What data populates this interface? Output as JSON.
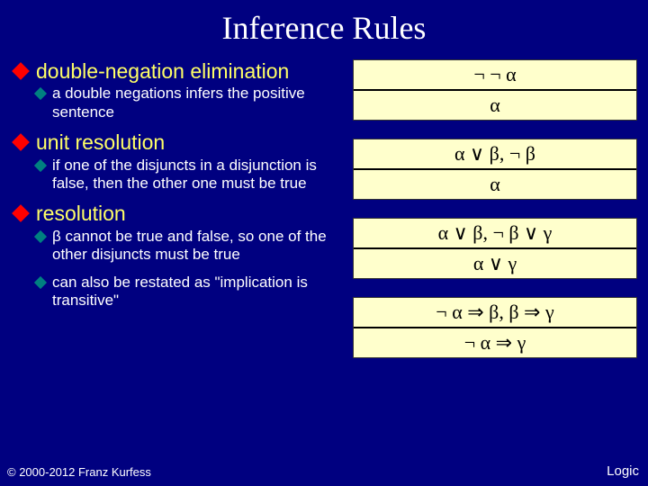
{
  "title": "Inference Rules",
  "bullets": [
    {
      "label": "double-negation elimination",
      "subs": [
        "a double negations infers the positive sentence"
      ]
    },
    {
      "label": "unit resolution",
      "subs": [
        "if one of the disjuncts in a disjunction is false, then the other one must be true"
      ]
    },
    {
      "label": "resolution",
      "subs": [
        "β  cannot be true and false, so one of the other disjuncts must be true",
        "can also be restated as \"implication is transitive\""
      ]
    }
  ],
  "rules": [
    {
      "top": "¬ ¬ α",
      "bot": "α"
    },
    {
      "top": "α  ∨ β,      ¬ β",
      "bot": "α"
    },
    {
      "top": "α  ∨ β,   ¬ β  ∨ γ",
      "bot": "α  ∨ γ"
    },
    {
      "top": "¬ α ⇒ β,  β ⇒ γ",
      "bot": "¬ α ⇒ γ"
    }
  ],
  "copyright": "© 2000-2012 Franz Kurfess",
  "footer_right": "Logic",
  "colors": {
    "background": "#000080",
    "title": "#ffffff",
    "bullet_text": "#ffff66",
    "sub_text": "#ffffff",
    "diamond_main": "#ff0000",
    "diamond_sub": "#008080",
    "rule_bg": "#ffffcc",
    "rule_text": "#000000"
  },
  "fonts": {
    "title_family": "Times New Roman",
    "body_family": "Arial",
    "formula_family": "Times New Roman",
    "title_size_pt": 27,
    "bullet_size_pt": 17,
    "sub_size_pt": 13,
    "formula_size_pt": 16
  }
}
